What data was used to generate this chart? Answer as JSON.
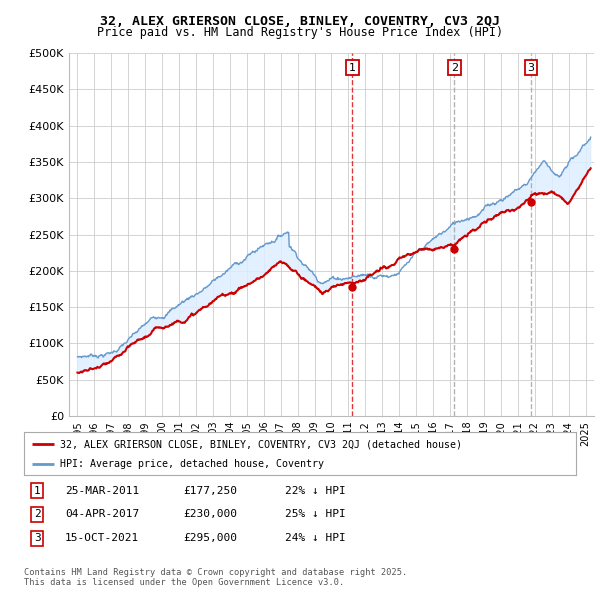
{
  "title1": "32, ALEX GRIERSON CLOSE, BINLEY, COVENTRY, CV3 2QJ",
  "title2": "Price paid vs. HM Land Registry's House Price Index (HPI)",
  "background_color": "#ffffff",
  "plot_bg_color": "#ffffff",
  "grid_color": "#cccccc",
  "hpi_color": "#6699cc",
  "fill_color": "#ddeeff",
  "price_color": "#cc0000",
  "vline_colors": [
    "#dd2222",
    "#aaaaaa",
    "#aaaaaa"
  ],
  "ylim": [
    0,
    500000
  ],
  "yticks": [
    0,
    50000,
    100000,
    150000,
    200000,
    250000,
    300000,
    350000,
    400000,
    450000,
    500000
  ],
  "ytick_labels": [
    "£0",
    "£50K",
    "£100K",
    "£150K",
    "£200K",
    "£250K",
    "£300K",
    "£350K",
    "£400K",
    "£450K",
    "£500K"
  ],
  "xtick_years": [
    1995,
    1996,
    1997,
    1998,
    1999,
    2000,
    2001,
    2002,
    2003,
    2004,
    2005,
    2006,
    2007,
    2008,
    2009,
    2010,
    2011,
    2012,
    2013,
    2014,
    2015,
    2016,
    2017,
    2018,
    2019,
    2020,
    2021,
    2022,
    2023,
    2024,
    2025
  ],
  "sale_dates": [
    2011.23,
    2017.26,
    2021.79
  ],
  "sale_prices": [
    177250,
    230000,
    295000
  ],
  "sale_labels": [
    "1",
    "2",
    "3"
  ],
  "legend_price_label": "32, ALEX GRIERSON CLOSE, BINLEY, COVENTRY, CV3 2QJ (detached house)",
  "legend_hpi_label": "HPI: Average price, detached house, Coventry",
  "table_rows": [
    {
      "num": "1",
      "date": "25-MAR-2011",
      "price": "£177,250",
      "hpi": "22% ↓ HPI"
    },
    {
      "num": "2",
      "date": "04-APR-2017",
      "price": "£230,000",
      "hpi": "25% ↓ HPI"
    },
    {
      "num": "3",
      "date": "15-OCT-2021",
      "price": "£295,000",
      "hpi": "24% ↓ HPI"
    }
  ],
  "footer": "Contains HM Land Registry data © Crown copyright and database right 2025.\nThis data is licensed under the Open Government Licence v3.0."
}
